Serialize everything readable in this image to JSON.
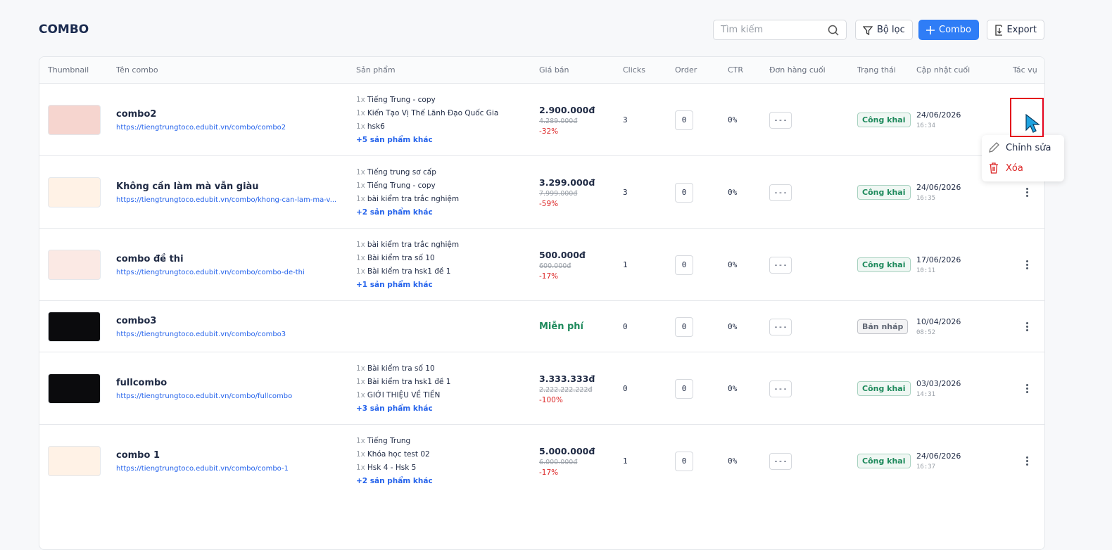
{
  "header": {
    "title": "COMBO",
    "search_placeholder": "Tìm kiếm",
    "filter": "Bộ lọc",
    "add": "Combo",
    "export": "Export"
  },
  "table": {
    "columns": [
      "Thumbnail",
      "Tên combo",
      "Sản phẩm",
      "Giá bán",
      "Clicks",
      "Order",
      "CTR",
      "Đơn hàng cuối",
      "Trạng thái",
      "Cập nhật cuối",
      "Tác vụ"
    ],
    "rows": [
      {
        "name": "combo2",
        "url": "https://tiengtrungtoco.edubit.vn/combo/combo2",
        "products": [
          {
            "qty": "1x",
            "name": "Tiếng Trung - copy"
          },
          {
            "qty": "1x",
            "name": "Kiến Tạo Vị Thế Lãnh Đạo Quốc Gia"
          },
          {
            "qty": "1x",
            "name": "hsk6"
          }
        ],
        "more": "+5 sản phẩm khác",
        "price": "2.900.000đ",
        "old_price": "4.289.000đ",
        "discount": "-32%",
        "clicks": 3,
        "order": 0,
        "ctr": "0%",
        "last_order": "---",
        "status": "Công khai",
        "status_color": "#1e8a5c",
        "date": "24/06/2026",
        "time": "16:34"
      },
      {
        "name": "Không cần làm mà vẫn giàu",
        "url": "https://tiengtrungtoco.edubit.vn/combo/khong-can-lam-ma-v...",
        "products": [
          {
            "qty": "1x",
            "name": "Tiếng trung sơ cấp"
          },
          {
            "qty": "1x",
            "name": "Tiếng Trung - copy"
          },
          {
            "qty": "1x",
            "name": "bài kiểm tra trắc nghiệm"
          }
        ],
        "more": "+2 sản phẩm khác",
        "price": "3.299.000đ",
        "old_price": "7.999.000đ",
        "discount": "-59%",
        "clicks": 3,
        "order": 0,
        "ctr": "0%",
        "last_order": "---",
        "status": "Công khai",
        "status_color": "#1e8a5c",
        "date": "24/06/2026",
        "time": "16:35"
      },
      {
        "name": "combo đề thi",
        "url": "https://tiengtrungtoco.edubit.vn/combo/combo-de-thi",
        "products": [
          {
            "qty": "1x",
            "name": "bài kiểm tra trắc nghiệm"
          },
          {
            "qty": "1x",
            "name": "Bài kiểm tra số 10"
          },
          {
            "qty": "1x",
            "name": "Bài kiểm tra hsk1 đề 1"
          }
        ],
        "more": "+1 sản phẩm khác",
        "price": "500.000đ",
        "old_price": "600.000đ",
        "discount": "-17%",
        "clicks": 1,
        "order": 0,
        "ctr": "0%",
        "last_order": "---",
        "status": "Công khai",
        "status_color": "#1e8a5c",
        "date": "17/06/2026",
        "time": "10:11"
      },
      {
        "name": "combo3",
        "url": "https://tiengtrungtoco.edubit.vn/combo/combo3",
        "products": [],
        "price": "Miễn phí",
        "clicks": 0,
        "order": 0,
        "ctr": "0%",
        "last_order": "---",
        "status": "Bản nháp",
        "status_color": "#5f6673",
        "date": "10/04/2026",
        "time": "08:52"
      },
      {
        "name": "fullcombo",
        "url": "https://tiengtrungtoco.edubit.vn/combo/fullcombo",
        "products": [
          {
            "qty": "1x",
            "name": "Bài kiểm tra số 10"
          },
          {
            "qty": "1x",
            "name": "Bài kiểm tra hsk1 đề 1"
          },
          {
            "qty": "1x",
            "name": "GIỚI THIỆU VỀ TIỀN"
          }
        ],
        "more": "+3 sản phẩm khác",
        "price": "3.333.333đ",
        "old_price": "2.222.222.222đ",
        "discount": "-100%",
        "clicks": 0,
        "order": 0,
        "ctr": "0%",
        "last_order": "---",
        "status": "Công khai",
        "status_color": "#1e8a5c",
        "date": "03/03/2026",
        "time": "14:31"
      },
      {
        "name": "combo 1",
        "url": "https://tiengtrungtoco.edubit.vn/combo/combo-1",
        "products": [
          {
            "qty": "1x",
            "name": "Tiếng Trung"
          },
          {
            "qty": "1x",
            "name": "Khóa học test 02"
          },
          {
            "qty": "1x",
            "name": "Hsk 4 - Hsk 5"
          }
        ],
        "more": "+2 sản phẩm khác",
        "price": "5.000.000đ",
        "old_price": "6.000.000đ",
        "discount": "-17%",
        "clicks": 1,
        "order": 0,
        "ctr": "0%",
        "last_order": "---",
        "status": "Công khai",
        "status_color": "#1e8a5c",
        "date": "24/06/2026",
        "time": "16:37"
      }
    ]
  },
  "menu": {
    "edit": "Chỉnh sửa",
    "delete": "Xóa"
  }
}
